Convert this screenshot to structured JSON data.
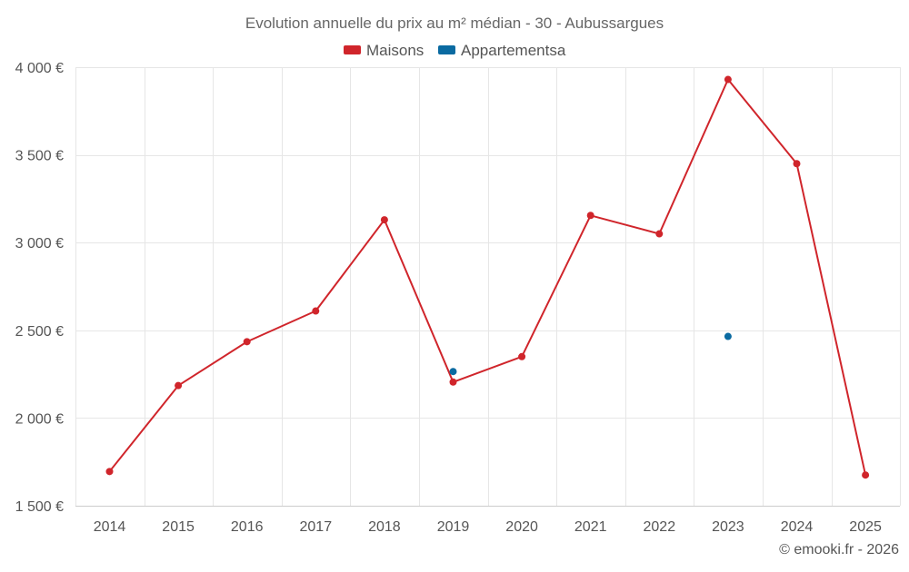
{
  "chart_data": {
    "type": "line",
    "title": "Evolution annuelle du prix au m² médian - 30 - Aubussargues",
    "xlabel": "",
    "ylabel": "",
    "categories": [
      "2014",
      "2015",
      "2016",
      "2017",
      "2018",
      "2019",
      "2020",
      "2021",
      "2022",
      "2023",
      "2024",
      "2025"
    ],
    "ylim": [
      1500,
      4000
    ],
    "y_ticks": [
      1500,
      2000,
      2500,
      3000,
      3500,
      4000
    ],
    "y_tick_labels": [
      "1 500 €",
      "2 000 €",
      "2 500 €",
      "3 000 €",
      "3 500 €",
      "4 000 €"
    ],
    "grid": true,
    "legend_position": "top-center",
    "series": [
      {
        "name": "Maisons",
        "color": "#d0252b",
        "values": [
          1695,
          2185,
          2435,
          2610,
          3130,
          2205,
          2350,
          3155,
          3050,
          3930,
          3450,
          1675
        ]
      },
      {
        "name": "Appartementsa",
        "color": "#0a6aa1",
        "values": [
          null,
          null,
          null,
          null,
          null,
          2265,
          null,
          null,
          null,
          2465,
          null,
          null
        ]
      }
    ]
  },
  "credit": "© emooki.fr - 2026"
}
